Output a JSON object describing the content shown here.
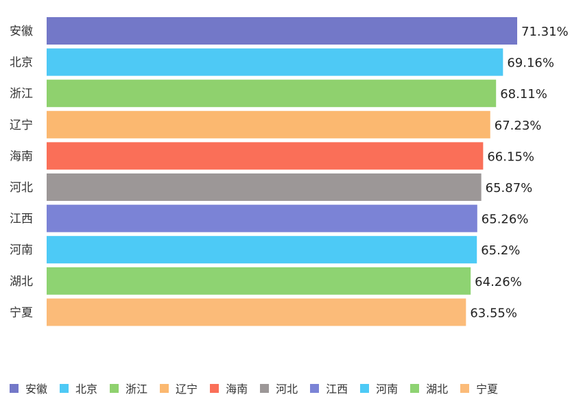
{
  "chart_data": {
    "type": "bar",
    "orientation": "horizontal",
    "title": "",
    "xlabel": "",
    "ylabel": "",
    "categories": [
      "安徽",
      "北京",
      "浙江",
      "辽宁",
      "海南",
      "河北",
      "江西",
      "河南",
      "湖北",
      "宁夏"
    ],
    "values": [
      71.31,
      69.16,
      68.11,
      67.23,
      66.15,
      65.87,
      65.26,
      65.2,
      64.26,
      63.55
    ],
    "value_labels": [
      "71.31%",
      "69.16%",
      "68.11%",
      "67.23%",
      "66.15%",
      "65.87%",
      "65.26%",
      "65.2%",
      "64.26%",
      "63.55%"
    ],
    "xlim": [
      0,
      71.31
    ],
    "grid": false,
    "legend_position": "bottom",
    "colors": [
      "#7378c8",
      "#4ec9f5",
      "#8fd16e",
      "#fbb870",
      "#fa6f58",
      "#9c9797",
      "#7b83d6",
      "#4dcaf6",
      "#8ed372",
      "#fbbb79"
    ],
    "legend": [
      "安徽",
      "北京",
      "浙江",
      "辽宁",
      "海南",
      "河北",
      "江西",
      "河南",
      "湖北",
      "宁夏"
    ]
  }
}
